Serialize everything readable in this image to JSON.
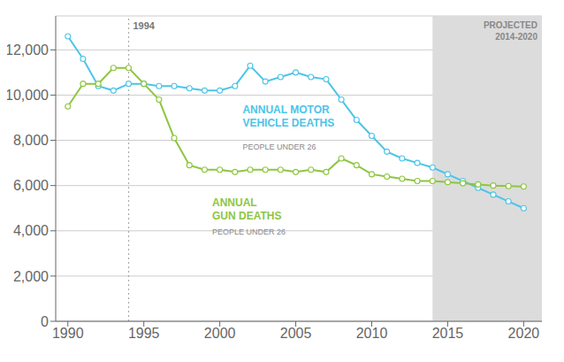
{
  "chart_data": {
    "type": "line",
    "x": [
      1990,
      1991,
      1992,
      1993,
      1994,
      1995,
      1996,
      1997,
      1998,
      1999,
      2000,
      2001,
      2002,
      2003,
      2004,
      2005,
      2006,
      2007,
      2008,
      2009,
      2010,
      2011,
      2012,
      2013,
      2014,
      2015,
      2016,
      2017,
      2018,
      2019,
      2020
    ],
    "series": [
      {
        "color": "#4CC4E8",
        "values": [
          12600,
          11600,
          10400,
          10200,
          10500,
          10500,
          10400,
          10400,
          10300,
          10200,
          10200,
          10400,
          11300,
          10600,
          10800,
          11000,
          10800,
          10700,
          9800,
          8900,
          8200,
          7500,
          7200,
          7000,
          6800,
          6500,
          6200,
          5900,
          5600,
          5300,
          5000
        ]
      },
      {
        "color": "#8DC63F",
        "values": [
          9500,
          10500,
          10500,
          11200,
          11200,
          10500,
          9800,
          8100,
          6900,
          6700,
          6700,
          6600,
          6700,
          6700,
          6700,
          6600,
          6700,
          6600,
          7200,
          6900,
          6500,
          6400,
          6300,
          6200,
          6200,
          6150,
          6100,
          6050,
          6000,
          5980,
          5960
        ]
      }
    ],
    "xlim": [
      1989.2,
      2021.2
    ],
    "xticks": [
      1990,
      1995,
      2000,
      2005,
      2010,
      2015,
      2020
    ],
    "ylim": [
      0,
      13500
    ],
    "yticks": [
      0,
      {
        "value": 2000,
        "label": "2,000"
      },
      {
        "value": 4000,
        "label": "4,000"
      },
      {
        "value": 6000,
        "label": "6,000"
      },
      {
        "value": 8000,
        "label": "8,000"
      },
      {
        "value": 10000,
        "label": "10,000"
      },
      {
        "value": 12000,
        "label": "12,000"
      }
    ],
    "grid": true,
    "marker": "circle",
    "reference_line": {
      "x": 1994,
      "label": "1994",
      "color": "#AAAAAA",
      "line_style": "dotted"
    },
    "shaded_range": {
      "x": [
        2014,
        2021.2
      ],
      "label": "PROJECTED\n2014-2020",
      "color": "#DCDCDC"
    },
    "annotations": [
      {
        "text": "ANNUAL MOTOR\nVEHICLE DEATHS",
        "x": 2001.5,
        "y": 9600,
        "color": "#4CC4E8"
      },
      {
        "text": "PEOPLE UNDER 26",
        "x": 2001.5,
        "y": 7900,
        "color": "#888888"
      },
      {
        "text": "ANNUAL\nGUN DEATHS",
        "x": 1999.5,
        "y": 5500,
        "color": "#8DC63F"
      },
      {
        "text": "PEOPLE UNDER 26",
        "x": 1999.5,
        "y": 4150,
        "color": "#888888"
      }
    ]
  }
}
